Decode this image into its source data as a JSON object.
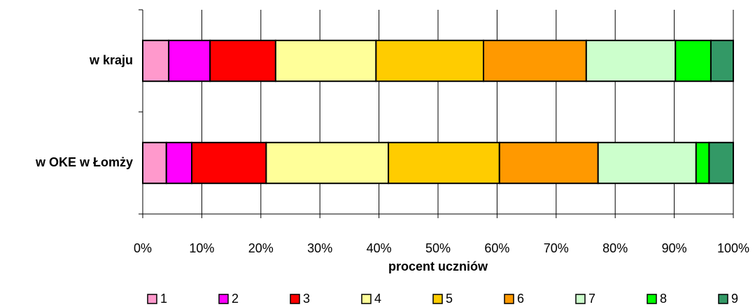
{
  "chart_data": {
    "type": "stacked_bar_horizontal",
    "categories": [
      "w kraju",
      "w OKE w Łomży"
    ],
    "series": [
      {
        "name": "1",
        "color": "#ff99cc",
        "values": [
          4.4,
          4.0
        ]
      },
      {
        "name": "2",
        "color": "#ff00ff",
        "values": [
          7.0,
          4.3
        ]
      },
      {
        "name": "3",
        "color": "#ff0000",
        "values": [
          11.1,
          12.6
        ]
      },
      {
        "name": "4",
        "color": "#ffff99",
        "values": [
          17.0,
          20.7
        ]
      },
      {
        "name": "5",
        "color": "#ffcc00",
        "values": [
          18.2,
          18.8
        ]
      },
      {
        "name": "6",
        "color": "#ff9900",
        "values": [
          17.4,
          16.7
        ]
      },
      {
        "name": "7",
        "color": "#ccffcc",
        "values": [
          15.1,
          16.6
        ]
      },
      {
        "name": "8",
        "color": "#00ff00",
        "values": [
          6.0,
          2.2
        ]
      },
      {
        "name": "9",
        "color": "#339966",
        "values": [
          3.8,
          4.1
        ]
      }
    ],
    "xlabel": "procent uczniów",
    "xlim": [
      0,
      100
    ],
    "xticks": [
      {
        "value": 0,
        "label": "0%"
      },
      {
        "value": 10,
        "label": "10%"
      },
      {
        "value": 20,
        "label": "20%"
      },
      {
        "value": 30,
        "label": "30%"
      },
      {
        "value": 40,
        "label": "40%"
      },
      {
        "value": 50,
        "label": "50%"
      },
      {
        "value": 60,
        "label": "60%"
      },
      {
        "value": 70,
        "label": "70%"
      },
      {
        "value": 80,
        "label": "80%"
      },
      {
        "value": 90,
        "label": "90%"
      },
      {
        "value": 100,
        "label": "100%"
      }
    ],
    "grid": true,
    "legend": "bottom"
  }
}
